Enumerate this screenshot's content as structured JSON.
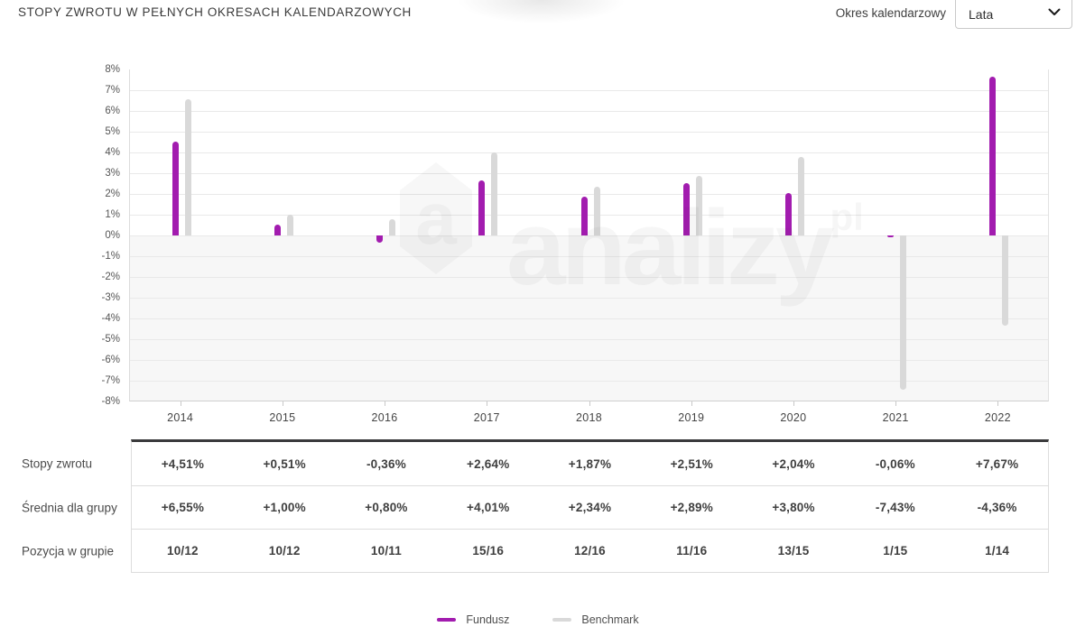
{
  "header": {
    "title": "STOPY ZWROTU W PEŁNYCH OKRESACH KALENDARZOWYCH",
    "period_label": "Okres kalendarzowy",
    "period_value": "Lata"
  },
  "colors": {
    "fund": "#a21caf",
    "benchmark": "#d9d9d9",
    "grid": "#e9e9e9",
    "negative_zone": "#f7f7f7"
  },
  "watermark": {
    "text": "analizy",
    "sup": "pl",
    "logo_letter": "a"
  },
  "chart_data": {
    "type": "bar",
    "title": "STOPY ZWROTU W PEŁNYCH OKRESACH KALENDARZOWYCH",
    "categories": [
      "2014",
      "2015",
      "2016",
      "2017",
      "2018",
      "2019",
      "2020",
      "2021",
      "2022"
    ],
    "series": [
      {
        "name": "Fundusz",
        "color": "#a21caf",
        "values": [
          4.51,
          0.51,
          -0.36,
          2.64,
          1.87,
          2.51,
          2.04,
          -0.06,
          7.67
        ]
      },
      {
        "name": "Benchmark",
        "color": "#d9d9d9",
        "values": [
          6.55,
          1.0,
          0.8,
          4.01,
          2.34,
          2.89,
          3.8,
          -7.43,
          -4.36
        ]
      }
    ],
    "ylim": [
      -8,
      8
    ],
    "ytick_step": 1,
    "ytick_suffix": "%",
    "grid": true,
    "legend_position": "bottom"
  },
  "table": {
    "rows": [
      {
        "label": "Stopy zwrotu",
        "values": [
          "+4,51%",
          "+0,51%",
          "-0,36%",
          "+2,64%",
          "+1,87%",
          "+2,51%",
          "+2,04%",
          "-0,06%",
          "+7,67%"
        ]
      },
      {
        "label": "Średnia dla grupy",
        "values": [
          "+6,55%",
          "+1,00%",
          "+0,80%",
          "+4,01%",
          "+2,34%",
          "+2,89%",
          "+3,80%",
          "-7,43%",
          "-4,36%"
        ]
      },
      {
        "label": "Pozycja w grupie",
        "values": [
          "10/12",
          "10/12",
          "10/11",
          "15/16",
          "12/16",
          "11/16",
          "13/15",
          "1/15",
          "1/14"
        ]
      }
    ]
  },
  "legend": {
    "items": [
      {
        "label": "Fundusz",
        "color": "#a21caf"
      },
      {
        "label": "Benchmark",
        "color": "#d9d9d9"
      }
    ]
  }
}
